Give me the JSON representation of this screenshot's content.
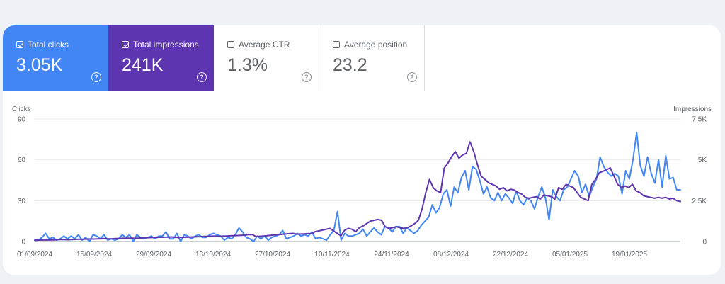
{
  "metrics": [
    {
      "label": "Total clicks",
      "value": "3.05K",
      "checked": true
    },
    {
      "label": "Total impressions",
      "value": "241K",
      "checked": true
    },
    {
      "label": "Average CTR",
      "value": "1.3%",
      "checked": false
    },
    {
      "label": "Average position",
      "value": "23.2",
      "checked": false
    }
  ],
  "help_glyph": "?",
  "colors": {
    "clicks": "#4285f4",
    "impressions": "#5e35b1",
    "grid": "#e8eaed"
  },
  "chart_data": {
    "type": "line",
    "left_axis_title": "Clicks",
    "right_axis_title": "Impressions",
    "left_ticks": [
      "0",
      "30",
      "60",
      "90"
    ],
    "left_tick_values": [
      0,
      30,
      60,
      90
    ],
    "right_ticks": [
      "0",
      "2.5K",
      "5K",
      "7.5K"
    ],
    "right_tick_values": [
      0,
      2500,
      5000,
      7500
    ],
    "ylim_left": [
      0,
      90
    ],
    "ylim_right": [
      0,
      7500
    ],
    "x_start": "2024-09-01",
    "x_end": "2025-01-31",
    "x_ticks": [
      "01/09/2024",
      "15/09/2024",
      "29/09/2024",
      "13/10/2024",
      "27/10/2024",
      "10/11/2024",
      "24/11/2024",
      "08/12/2024",
      "22/12/2024",
      "05/01/2025",
      "19/01/2025"
    ],
    "grid": true,
    "series": [
      {
        "name": "Clicks",
        "axis": "left",
        "color": "#4285f4",
        "values": [
          1,
          1,
          3,
          6,
          2,
          3,
          1,
          2,
          4,
          2,
          4,
          2,
          5,
          1,
          3,
          0,
          5,
          4,
          2,
          5,
          1,
          2,
          1,
          2,
          5,
          3,
          5,
          0,
          5,
          3,
          2,
          3,
          4,
          2,
          4,
          4,
          7,
          2,
          2,
          6,
          0,
          5,
          4,
          2,
          4,
          5,
          3,
          3,
          5,
          6,
          5,
          4,
          1,
          3,
          2,
          5,
          10,
          7,
          3,
          2,
          0,
          4,
          2,
          4,
          1,
          3,
          4,
          5,
          8,
          2,
          3,
          4,
          6,
          4,
          5,
          4,
          7,
          2,
          3,
          2,
          1,
          5,
          8,
          22,
          1,
          6,
          4,
          4,
          5,
          6,
          9,
          4,
          7,
          10,
          7,
          5,
          11,
          10,
          7,
          11,
          11,
          6,
          10,
          8,
          6,
          8,
          12,
          15,
          18,
          27,
          21,
          25,
          35,
          38,
          26,
          40,
          36,
          47,
          52,
          38,
          55,
          53,
          45,
          35,
          40,
          32,
          30,
          36,
          30,
          35,
          32,
          28,
          37,
          30,
          27,
          32,
          30,
          24,
          33,
          40,
          32,
          16,
          38,
          33,
          30,
          38,
          40,
          46,
          52,
          48,
          36,
          42,
          33,
          40,
          46,
          62,
          55,
          51,
          48,
          50,
          48,
          35,
          52,
          46,
          60,
          80,
          56,
          48,
          62,
          50,
          43,
          60,
          40,
          63,
          46,
          47,
          38,
          38
        ]
      },
      {
        "name": "Impressions",
        "axis": "right",
        "color": "#5e35b1",
        "values": [
          80,
          85,
          90,
          95,
          90,
          100,
          110,
          120,
          115,
          110,
          120,
          130,
          140,
          145,
          150,
          155,
          150,
          160,
          170,
          180,
          160,
          170,
          180,
          190,
          200,
          210,
          205,
          200,
          210,
          220,
          230,
          240,
          250,
          255,
          260,
          265,
          270,
          280,
          260,
          250,
          255,
          265,
          270,
          280,
          290,
          300,
          310,
          320,
          330,
          340,
          320,
          330,
          340,
          350,
          360,
          370,
          380,
          400,
          420,
          430,
          300,
          320,
          340,
          360,
          380,
          400,
          420,
          440,
          460,
          480,
          500,
          450,
          460,
          470,
          480,
          490,
          600,
          650,
          700,
          750,
          800,
          650,
          500,
          350,
          700,
          800,
          750,
          600,
          850,
          950,
          1100,
          1250,
          1300,
          1350,
          1300,
          900,
          800,
          850,
          900,
          850,
          800,
          850,
          950,
          1100,
          1300,
          2000,
          3000,
          3800,
          3300,
          3100,
          3000,
          4500,
          4800,
          5200,
          5500,
          5100,
          5300,
          5400,
          6100,
          5500,
          4700,
          4000,
          3800,
          3600,
          3500,
          3400,
          3200,
          3300,
          3100,
          3200,
          3150,
          3000,
          2900,
          2700,
          2650,
          2700,
          2750,
          2600,
          2850,
          2800,
          2750,
          2600,
          3300,
          3200,
          3500,
          3400,
          3300,
          3000,
          2700,
          2600,
          2500,
          3500,
          3800,
          4200,
          4300,
          4400,
          4500,
          4000,
          3500,
          3300,
          3400,
          3300,
          3500,
          3100,
          3000,
          2800,
          2750,
          2700,
          2650,
          2700,
          2650,
          2700,
          2600,
          2650,
          2500,
          2450
        ]
      }
    ]
  }
}
